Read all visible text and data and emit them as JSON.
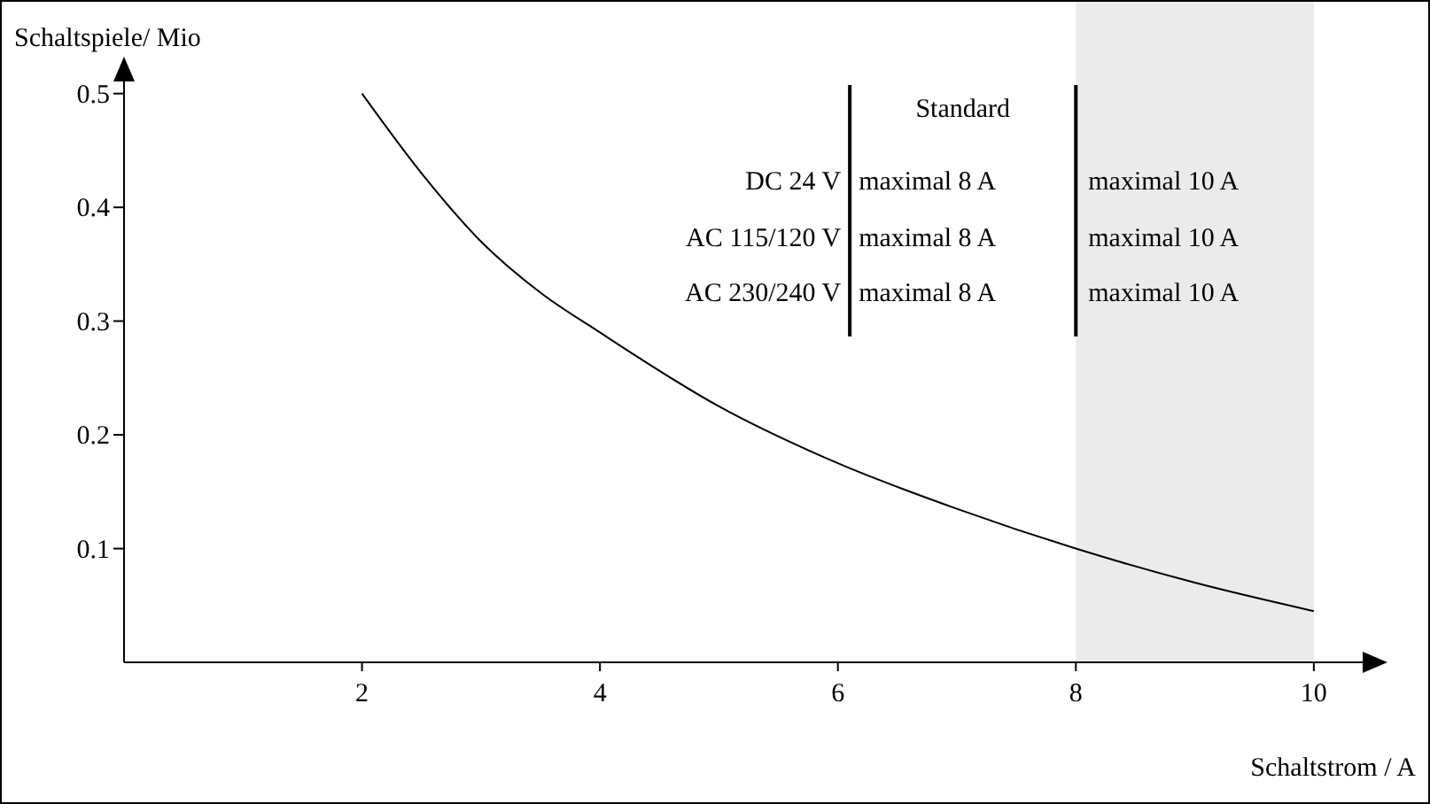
{
  "chart_data": {
    "type": "line",
    "xlabel": "Schaltstrom / A",
    "ylabel": "Schaltspiele/ Mio",
    "xlim": [
      0,
      10.5
    ],
    "ylim": [
      0,
      0.52
    ],
    "xticks": [
      2,
      4,
      6,
      8,
      10
    ],
    "yticks": [
      0.1,
      0.2,
      0.3,
      0.4,
      0.5
    ],
    "series": [
      {
        "color": "#000000",
        "x": [
          2,
          2.5,
          3,
          3.5,
          4,
          5,
          6,
          7,
          8,
          9,
          10
        ],
        "values": [
          0.5,
          0.43,
          0.37,
          0.325,
          0.29,
          0.225,
          0.175,
          0.135,
          0.1,
          0.07,
          0.045
        ]
      }
    ],
    "bands": [
      {
        "axis": "x",
        "from": 8,
        "to": 10,
        "color": "#ebebeb"
      }
    ],
    "annotations": [
      "Standard",
      "DC 24 V",
      "maximal 8 A",
      "maximal 10 A",
      "AC 115/120 V",
      "maximal 8 A",
      "maximal 10 A",
      "AC 230/240 V",
      "maximal 8 A",
      "maximal 10 A"
    ],
    "grid": false,
    "line_style": "solid"
  }
}
